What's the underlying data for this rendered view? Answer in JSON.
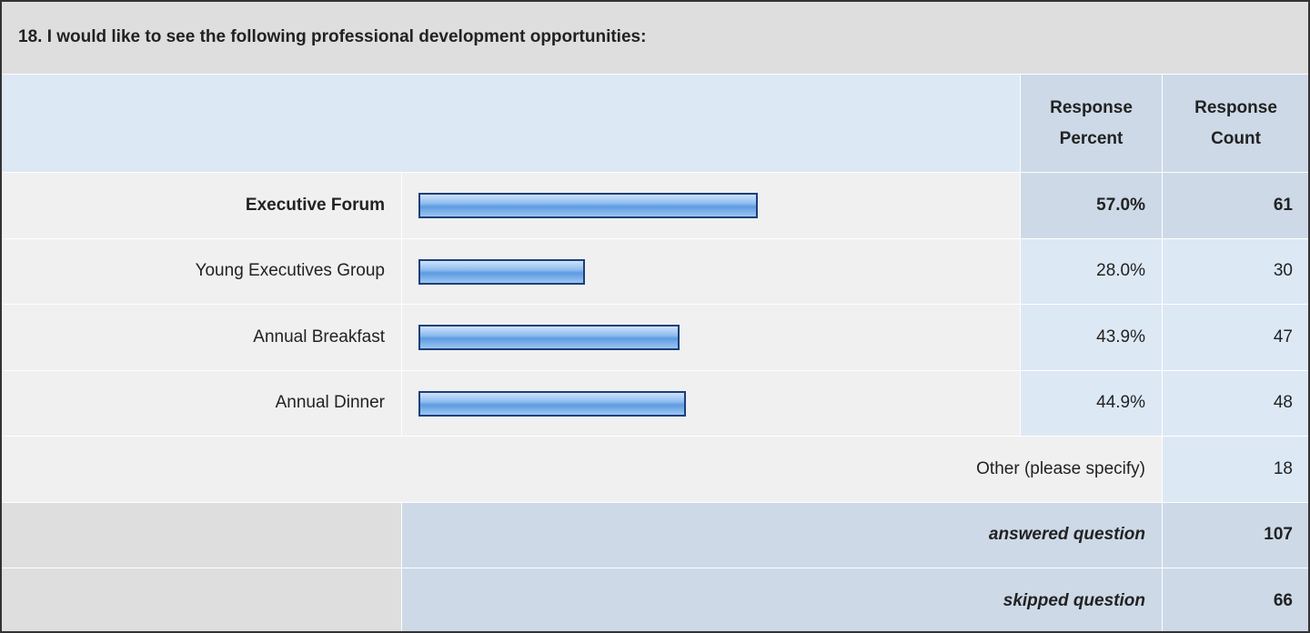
{
  "chart_data": {
    "type": "bar",
    "title": "18. I would like to see the following professional development opportunities:",
    "headers": [
      "Response Percent",
      "Response Count"
    ],
    "categories": [
      "Executive Forum",
      "Young Executives Group",
      "Annual Breakfast",
      "Annual Dinner"
    ],
    "values": [
      57.0,
      28.0,
      43.9,
      44.9
    ],
    "value_labels": [
      "57.0%",
      "28.0%",
      "43.9%",
      "44.9%"
    ],
    "counts": [
      61,
      30,
      47,
      48
    ],
    "other": {
      "label": "Other (please specify)",
      "count": 18
    },
    "answered": {
      "label": "answered question",
      "count": 107
    },
    "skipped": {
      "label": "skipped question",
      "count": 66
    }
  }
}
